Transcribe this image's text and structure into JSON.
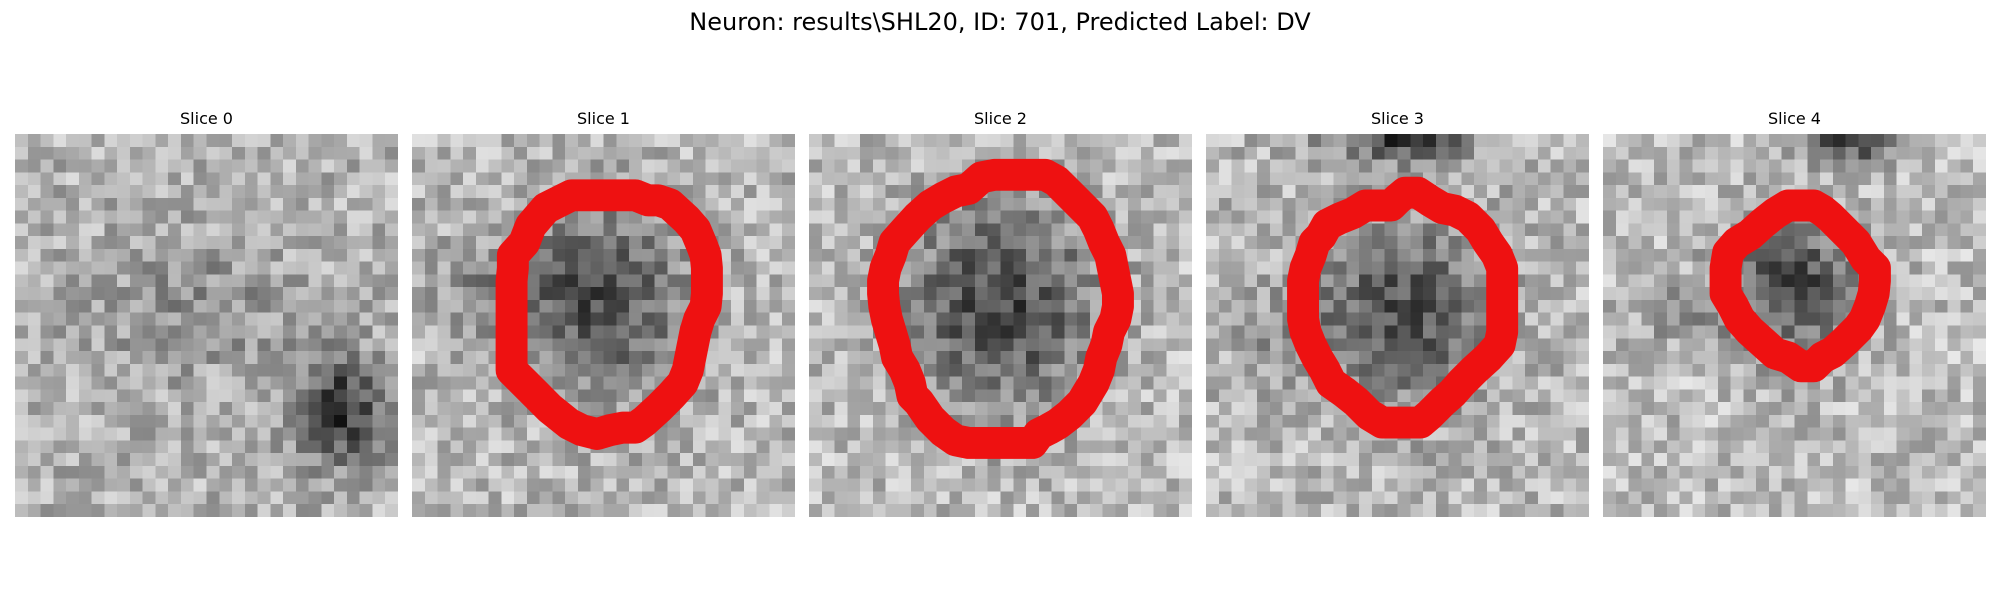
{
  "figure": {
    "title": "Neuron: results\\SHL20, ID: 701, Predicted Label: DV"
  },
  "colors": {
    "background": "#ffffff",
    "roi_outline": "#ee1111",
    "colormap": "gray"
  },
  "slices": [
    {
      "title": "Slice 0",
      "has_roi": false
    },
    {
      "title": "Slice 1",
      "has_roi": true
    },
    {
      "title": "Slice 2",
      "has_roi": true
    },
    {
      "title": "Slice 3",
      "has_roi": true
    },
    {
      "title": "Slice 4",
      "has_roi": true
    }
  ]
}
